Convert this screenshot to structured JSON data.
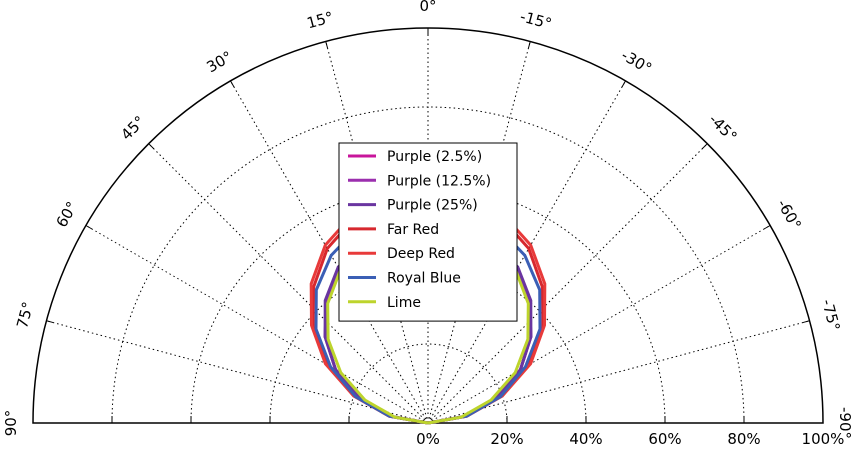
{
  "chart_data": {
    "type": "polar-half",
    "title": "",
    "angle_ticks": [
      "90°",
      "75°",
      "60°",
      "45°",
      "30°",
      "15°",
      "0°",
      "-15°",
      "-30°",
      "-45°",
      "-60°",
      "-75°",
      "-90°"
    ],
    "radial_ticks": [
      "0%",
      "20%",
      "40%",
      "60%",
      "80%",
      "100%"
    ],
    "radial_max": 100,
    "grid": true,
    "legend_position": "center",
    "angles": [
      90,
      80,
      70,
      60,
      50,
      40,
      30,
      20,
      10,
      0,
      -10,
      -20,
      -30,
      -40,
      -50,
      -60,
      -70,
      -80,
      -90
    ],
    "series": [
      {
        "name": "Purple (2.5%)",
        "color": "#c8159b",
        "values": [
          0,
          9,
          18,
          27,
          34,
          40,
          45,
          48,
          49.5,
          50,
          49.5,
          48,
          45,
          40,
          34,
          27,
          18,
          9,
          0
        ]
      },
      {
        "name": "Purple (12.5%)",
        "color": "#9b2fae",
        "values": [
          0,
          9,
          18,
          27,
          34,
          40,
          45,
          48.5,
          50,
          50.5,
          50,
          48.5,
          45,
          40,
          34,
          27,
          18,
          9,
          0
        ]
      },
      {
        "name": "Purple (25%)",
        "color": "#6a35a0",
        "values": [
          0,
          9,
          18,
          27,
          34,
          40.5,
          45.5,
          49,
          50.5,
          51,
          50.5,
          49,
          45.5,
          40.5,
          34,
          27,
          18,
          9,
          0
        ]
      },
      {
        "name": "Far Red",
        "color": "#d7282e",
        "values": [
          0,
          10,
          20,
          29.5,
          38,
          45,
          51,
          55,
          57,
          57,
          57,
          55,
          51,
          45,
          38,
          29.5,
          20,
          10,
          0
        ]
      },
      {
        "name": "Deep Red",
        "color": "#e83a3a",
        "values": [
          0,
          10,
          20,
          30,
          38.5,
          46,
          52,
          56,
          58,
          58,
          58,
          56,
          52,
          46,
          38.5,
          30,
          20,
          10,
          0
        ]
      },
      {
        "name": "Royal Blue",
        "color": "#3b5fb5",
        "values": [
          0,
          10,
          19.5,
          28.5,
          37,
          44,
          49,
          52.5,
          54,
          54,
          54,
          52.5,
          49,
          44,
          37,
          28.5,
          19.5,
          10,
          0
        ]
      },
      {
        "name": "Lime",
        "color": "#bdd42c",
        "values": [
          0,
          8.5,
          17,
          25.5,
          33,
          39.5,
          44.5,
          47.5,
          49,
          49.5,
          49,
          47.5,
          44.5,
          39.5,
          33,
          25.5,
          17,
          8.5,
          0
        ]
      }
    ]
  }
}
